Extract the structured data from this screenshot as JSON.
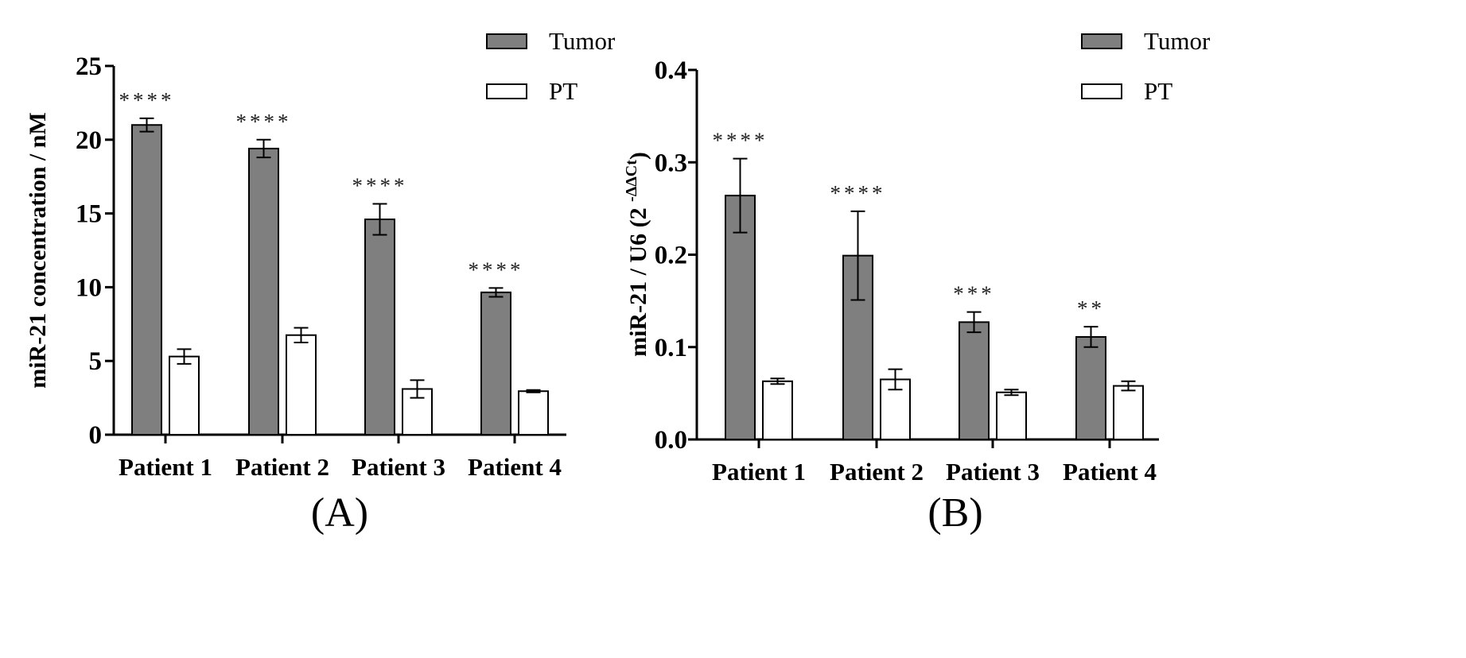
{
  "figure": {
    "panels": [
      {
        "id": "A",
        "label": "(A)"
      },
      {
        "id": "B",
        "label": "(B)"
      }
    ]
  },
  "colors": {
    "tumor": "#7f7f7f",
    "pt": "#ffffff",
    "axis": "#000000"
  },
  "chart_data": [
    {
      "type": "bar",
      "panel_label": "(A)",
      "categories": [
        "Patient 1",
        "Patient 2",
        "Patient 3",
        "Patient 4"
      ],
      "ylabel": "miR-21 concentration / nM",
      "ylim": [
        0,
        25
      ],
      "yticks": [
        "0",
        "5",
        "10",
        "15",
        "20",
        "25"
      ],
      "ytick_values": [
        0,
        5,
        10,
        15,
        20,
        25
      ],
      "legend_position": "top-right",
      "series": [
        {
          "name": "Tumor",
          "color": "#7f7f7f",
          "values": [
            21.0,
            19.4,
            14.6,
            9.65
          ],
          "errors": [
            0.45,
            0.6,
            1.05,
            0.3
          ]
        },
        {
          "name": "PT",
          "color": "#ffffff",
          "values": [
            5.3,
            6.75,
            3.1,
            2.95
          ],
          "errors": [
            0.5,
            0.5,
            0.6,
            0.08
          ]
        }
      ],
      "significance": [
        "****",
        "****",
        "****",
        "****"
      ]
    },
    {
      "type": "bar",
      "panel_label": "(B)",
      "categories": [
        "Patient 1",
        "Patient 2",
        "Patient 3",
        "Patient 4"
      ],
      "ylabel_main": "miR-21 / U6 (2",
      "ylabel_sup": "-ΔΔCt",
      "ylabel_close": ")",
      "ylim": [
        0,
        0.4
      ],
      "yticks": [
        "0.0",
        "0.1",
        "0.2",
        "0.3",
        "0.4"
      ],
      "ytick_values": [
        0,
        0.1,
        0.2,
        0.3,
        0.4
      ],
      "legend_position": "top-right",
      "series": [
        {
          "name": "Tumor",
          "color": "#7f7f7f",
          "values": [
            0.264,
            0.199,
            0.127,
            0.111
          ],
          "errors": [
            0.04,
            0.048,
            0.011,
            0.011
          ]
        },
        {
          "name": "PT",
          "color": "#ffffff",
          "values": [
            0.063,
            0.065,
            0.051,
            0.058
          ],
          "errors": [
            0.003,
            0.011,
            0.003,
            0.005
          ]
        }
      ],
      "significance": [
        "****",
        "****",
        "***",
        "**"
      ]
    }
  ]
}
